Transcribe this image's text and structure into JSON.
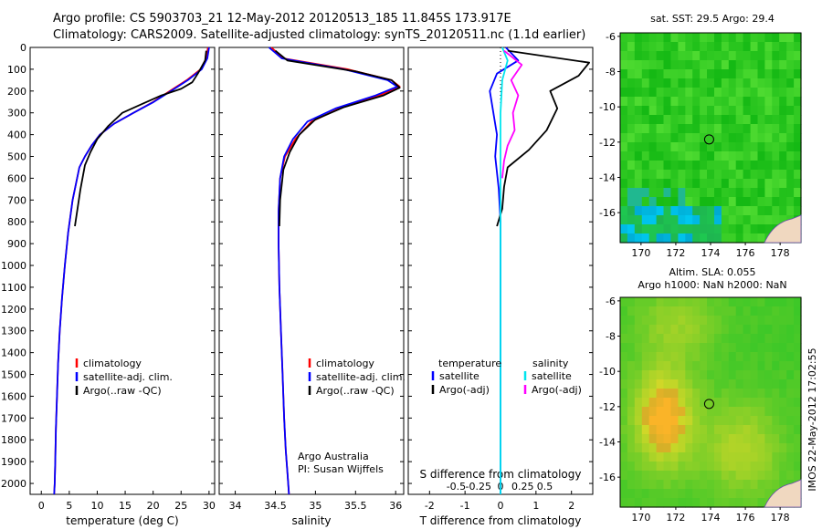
{
  "header": {
    "title_line1": "Argo profile: CS 5903703_21 12-May-2012 20120513_185 11.845S 173.917E",
    "title_line2": "Climatology: CARS2009. Satellite-adjusted climatology: synTS_20120511.nc (1.1d earlier)"
  },
  "colors": {
    "climatology": "#ff0000",
    "satellite": "#0000ff",
    "argo": "#000000",
    "sal_satellite": "#00e5ee",
    "sal_argo": "#ff00ff"
  },
  "depth_axis": {
    "ticks": [
      "0",
      "100",
      "200",
      "300",
      "400",
      "500",
      "600",
      "700",
      "800",
      "900",
      "1000",
      "1100",
      "1200",
      "1300",
      "1400",
      "1500",
      "1600",
      "1700",
      "1800",
      "1900",
      "2000"
    ]
  },
  "panels": {
    "temperature": {
      "xlabel": "temperature (deg C)",
      "xticks": [
        "0",
        "5",
        "10",
        "15",
        "20",
        "25",
        "30"
      ],
      "legend": [
        "climatology",
        "satellite-adj. clim.",
        "Argo(..raw -QC)"
      ]
    },
    "salinity": {
      "xlabel": "salinity",
      "xticks": [
        "34",
        "34.5",
        "35",
        "35.5",
        "36"
      ],
      "legend": [
        "climatology",
        "satellite-adj. clim.",
        "Argo(..raw -QC)"
      ],
      "credit1": "Argo Australia",
      "credit2": "PI: Susan Wijffels"
    },
    "difference": {
      "xlabel": "T difference from climatology",
      "top_label": "S difference from climatology",
      "s_ticks": [
        "-0.5",
        "-0.25",
        "0",
        "0.25",
        "0.5"
      ],
      "t_ticks": [
        "-2",
        "-1",
        "0",
        "1",
        "2"
      ],
      "legend_temp_title": "temperature",
      "legend_sal_title": "salinity",
      "legend_temp": [
        "satellite",
        "Argo(-adj)"
      ],
      "legend_sal": [
        "satellite",
        "Argo(-adj)"
      ]
    }
  },
  "maps": {
    "sst_title": "sat. SST: 29.5  Argo: 29.4",
    "sla_title1": "Altim. SLA: 0.055",
    "sla_title2": "Argo h1000: NaN h2000: NaN",
    "lat_ticks": [
      "-6",
      "-8",
      "-10",
      "-12",
      "-14",
      "-16"
    ],
    "lon_ticks": [
      "170",
      "172",
      "174",
      "176",
      "178"
    ]
  },
  "footer": {
    "stamp": "IMOS 22-May-2012 17:02:55"
  },
  "chart_data": [
    {
      "type": "line",
      "xlabel": "temperature (deg C)",
      "ylabel": "",
      "xlim": [
        -2,
        31
      ],
      "ylim": [
        2050,
        0
      ],
      "series": [
        {
          "name": "climatology",
          "x": [
            29.8,
            29.5,
            28.5,
            26,
            23,
            20,
            16.5,
            13,
            10.5,
            9,
            7.8,
            6.8,
            5.6,
            4.8,
            4.2,
            3.7,
            3.3,
            3,
            2.8,
            2.6,
            2.5,
            2.4,
            2.3
          ],
          "y": [
            0,
            50,
            100,
            150,
            200,
            250,
            300,
            350,
            400,
            450,
            500,
            550,
            700,
            850,
            1000,
            1150,
            1300,
            1450,
            1600,
            1750,
            1900,
            2000,
            2050
          ]
        },
        {
          "name": "satellite-adj. clim.",
          "x": [
            30,
            29.7,
            28.7,
            26.2,
            23.2,
            20.1,
            16.5,
            13,
            10.5,
            9,
            7.8,
            6.8,
            5.6,
            4.8,
            4.2,
            3.7,
            3.3,
            3,
            2.8,
            2.6,
            2.5,
            2.4,
            2.3
          ],
          "y": [
            0,
            50,
            100,
            150,
            200,
            250,
            300,
            350,
            400,
            450,
            500,
            550,
            700,
            850,
            1000,
            1150,
            1300,
            1450,
            1600,
            1750,
            1900,
            2000,
            2050
          ]
        },
        {
          "name": "Argo(..raw -QC)",
          "x": [
            29.5,
            29.3,
            28,
            27,
            25,
            21.5,
            18,
            14.5,
            12,
            10,
            8.8,
            7.8,
            7,
            6
          ],
          "y": [
            15,
            60,
            120,
            160,
            190,
            220,
            260,
            300,
            360,
            420,
            480,
            540,
            650,
            820
          ]
        }
      ]
    },
    {
      "type": "line",
      "xlabel": "salinity",
      "ylabel": "",
      "xlim": [
        33.8,
        36.1
      ],
      "ylim": [
        2050,
        0
      ],
      "series": [
        {
          "name": "climatology",
          "x": [
            34.45,
            34.6,
            35.4,
            35.95,
            36.05,
            35.8,
            35.3,
            34.95,
            34.75,
            34.62,
            34.56,
            34.54,
            34.54,
            34.55,
            34.57,
            34.59,
            34.61,
            34.63,
            34.65,
            34.67
          ],
          "y": [
            0,
            50,
            100,
            150,
            180,
            220,
            280,
            340,
            420,
            500,
            600,
            750,
            900,
            1100,
            1300,
            1500,
            1700,
            1850,
            1950,
            2050
          ]
        },
        {
          "name": "satellite-adj. clim.",
          "x": [
            34.42,
            34.58,
            35.35,
            35.9,
            36.02,
            35.75,
            35.25,
            34.9,
            34.72,
            34.61,
            34.56,
            34.54,
            34.54,
            34.55,
            34.57,
            34.59,
            34.61,
            34.63,
            34.65,
            34.67
          ],
          "y": [
            0,
            50,
            100,
            150,
            180,
            220,
            280,
            340,
            420,
            500,
            600,
            750,
            900,
            1100,
            1300,
            1500,
            1700,
            1850,
            1950,
            2050
          ]
        },
        {
          "name": "Argo(..raw -QC)",
          "x": [
            34.5,
            34.65,
            35.5,
            35.95,
            36.05,
            35.85,
            35.35,
            35.0,
            34.8,
            34.68,
            34.6,
            34.56,
            34.55
          ],
          "y": [
            15,
            60,
            110,
            150,
            185,
            220,
            275,
            330,
            400,
            480,
            560,
            700,
            820
          ]
        }
      ]
    },
    {
      "type": "line",
      "xlabel": "T difference from climatology",
      "ylabel": "",
      "xlim": [
        -2.6,
        2.6
      ],
      "ylim": [
        2050,
        0
      ],
      "series": [
        {
          "name": "temperature satellite",
          "x": [
            0.15,
            0.5,
            -0.1,
            -0.3,
            -0.2,
            -0.1,
            -0.15,
            -0.05,
            0,
            0,
            0,
            0,
            0
          ],
          "y": [
            0,
            60,
            120,
            200,
            300,
            400,
            500,
            650,
            800,
            1000,
            1400,
            1800,
            2050
          ]
        },
        {
          "name": "temperature Argo(-adj)",
          "x": [
            0.2,
            2.5,
            2.2,
            1.4,
            1.6,
            1.3,
            0.8,
            0.2,
            0.1,
            0.05,
            -0.1
          ],
          "y": [
            15,
            70,
            130,
            200,
            280,
            380,
            470,
            550,
            640,
            740,
            820
          ]
        },
        {
          "name": "salinity satellite",
          "x": [
            0.05,
            0.2,
            0.05,
            0,
            0,
            0,
            0,
            0
          ],
          "y": [
            0,
            60,
            150,
            300,
            600,
            1000,
            1500,
            2050
          ]
        },
        {
          "name": "salinity Argo(-adj)",
          "x": [
            0.1,
            0.6,
            0.3,
            0.5,
            0.35,
            0.4,
            0.2,
            0.1,
            0.05
          ],
          "y": [
            15,
            80,
            150,
            220,
            300,
            380,
            450,
            520,
            600
          ]
        }
      ]
    }
  ]
}
